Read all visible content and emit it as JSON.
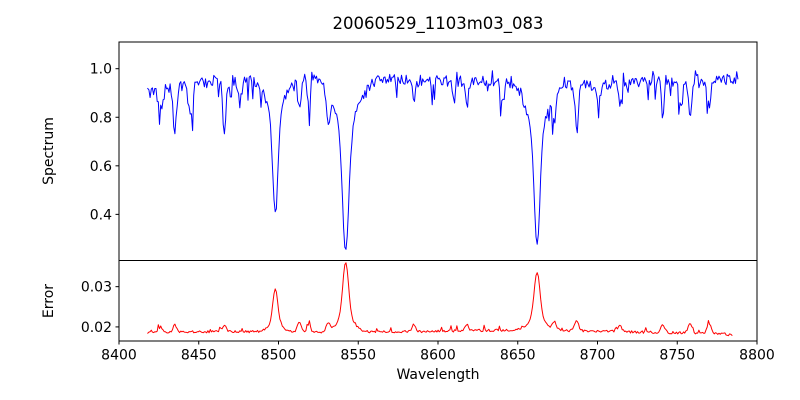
{
  "figure": {
    "title": "20060529_1103m03_083",
    "xlabel": "Wavelength",
    "x_ticks": [
      8400,
      8450,
      8500,
      8550,
      8600,
      8650,
      8700,
      8750,
      8800
    ],
    "x_tick_labels": [
      "8400",
      "8450",
      "8500",
      "8550",
      "8600",
      "8650",
      "8700",
      "8750",
      "8800"
    ],
    "background_color": "#ffffff",
    "axis_color": "#000000"
  },
  "chart_data": [
    {
      "id": "spectrum",
      "panel": "top",
      "type": "line",
      "title": "20060529_1103m03_083",
      "ylabel": "Spectrum",
      "color": "#0000ff",
      "xlim": [
        8400,
        8800
      ],
      "ylim": [
        0.21,
        1.11
      ],
      "x_range": [
        8418,
        8788
      ],
      "yticks": [
        0.4,
        0.6,
        0.8,
        1.0
      ],
      "ytick_labels": [
        "0.4",
        "0.6",
        "0.8",
        "1.0"
      ],
      "continuum_level": 0.96,
      "continuum_start_level": 0.9,
      "noise_amplitude": 0.045,
      "absorption_lines": [
        {
          "center": 8498.0,
          "min_value": 0.41,
          "core_width": 1.6,
          "wing_width": 5.5
        },
        {
          "center": 8542.1,
          "min_value": 0.25,
          "core_width": 2.0,
          "wing_width": 8.0
        },
        {
          "center": 8662.1,
          "min_value": 0.28,
          "core_width": 1.8,
          "wing_width": 7.0
        }
      ],
      "minor_dips": [
        {
          "center": 8426,
          "min_value": 0.83
        },
        {
          "center": 8435,
          "min_value": 0.72
        },
        {
          "center": 8445,
          "min_value": 0.79
        },
        {
          "center": 8466,
          "min_value": 0.75
        },
        {
          "center": 8476,
          "min_value": 0.84
        },
        {
          "center": 8513,
          "min_value": 0.82
        },
        {
          "center": 8519,
          "min_value": 0.85
        },
        {
          "center": 8531,
          "min_value": 0.84
        },
        {
          "center": 8585,
          "min_value": 0.86
        },
        {
          "center": 8610,
          "min_value": 0.87
        },
        {
          "center": 8618,
          "min_value": 0.85
        },
        {
          "center": 8640,
          "min_value": 0.88
        },
        {
          "center": 8673,
          "min_value": 0.83
        },
        {
          "center": 8687,
          "min_value": 0.74
        },
        {
          "center": 8700,
          "min_value": 0.87
        },
        {
          "center": 8714,
          "min_value": 0.86
        },
        {
          "center": 8741,
          "min_value": 0.82
        },
        {
          "center": 8752,
          "min_value": 0.85
        },
        {
          "center": 8758,
          "min_value": 0.8
        },
        {
          "center": 8770,
          "min_value": 0.84
        }
      ]
    },
    {
      "id": "error",
      "panel": "bottom",
      "type": "line",
      "ylabel": "Error",
      "xlabel": "Wavelength",
      "color": "#ff0000",
      "xlim": [
        8400,
        8800
      ],
      "ylim": [
        0.0165,
        0.0365
      ],
      "x_range": [
        8418,
        8785
      ],
      "yticks": [
        0.02,
        0.03
      ],
      "ytick_labels": [
        "0.02",
        "0.03"
      ],
      "baseline": 0.0187,
      "noise_amplitude": 0.0006,
      "peaks": [
        {
          "center": 8498.0,
          "max_value": 0.0295,
          "core_width": 1.5,
          "wing_width": 4.0
        },
        {
          "center": 8542.1,
          "max_value": 0.036,
          "core_width": 1.8,
          "wing_width": 5.0
        },
        {
          "center": 8662.1,
          "max_value": 0.0335,
          "core_width": 1.8,
          "wing_width": 5.0
        }
      ],
      "minor_bumps": [
        {
          "center": 8426,
          "max_value": 0.02
        },
        {
          "center": 8435,
          "max_value": 0.0206
        },
        {
          "center": 8466,
          "max_value": 0.0205
        },
        {
          "center": 8513,
          "max_value": 0.0212
        },
        {
          "center": 8519,
          "max_value": 0.0204
        },
        {
          "center": 8531,
          "max_value": 0.0207
        },
        {
          "center": 8585,
          "max_value": 0.0205
        },
        {
          "center": 8618,
          "max_value": 0.0206
        },
        {
          "center": 8673,
          "max_value": 0.021
        },
        {
          "center": 8687,
          "max_value": 0.0216
        },
        {
          "center": 8714,
          "max_value": 0.0204
        },
        {
          "center": 8741,
          "max_value": 0.0206
        },
        {
          "center": 8758,
          "max_value": 0.0208
        },
        {
          "center": 8770,
          "max_value": 0.0209
        }
      ]
    }
  ]
}
